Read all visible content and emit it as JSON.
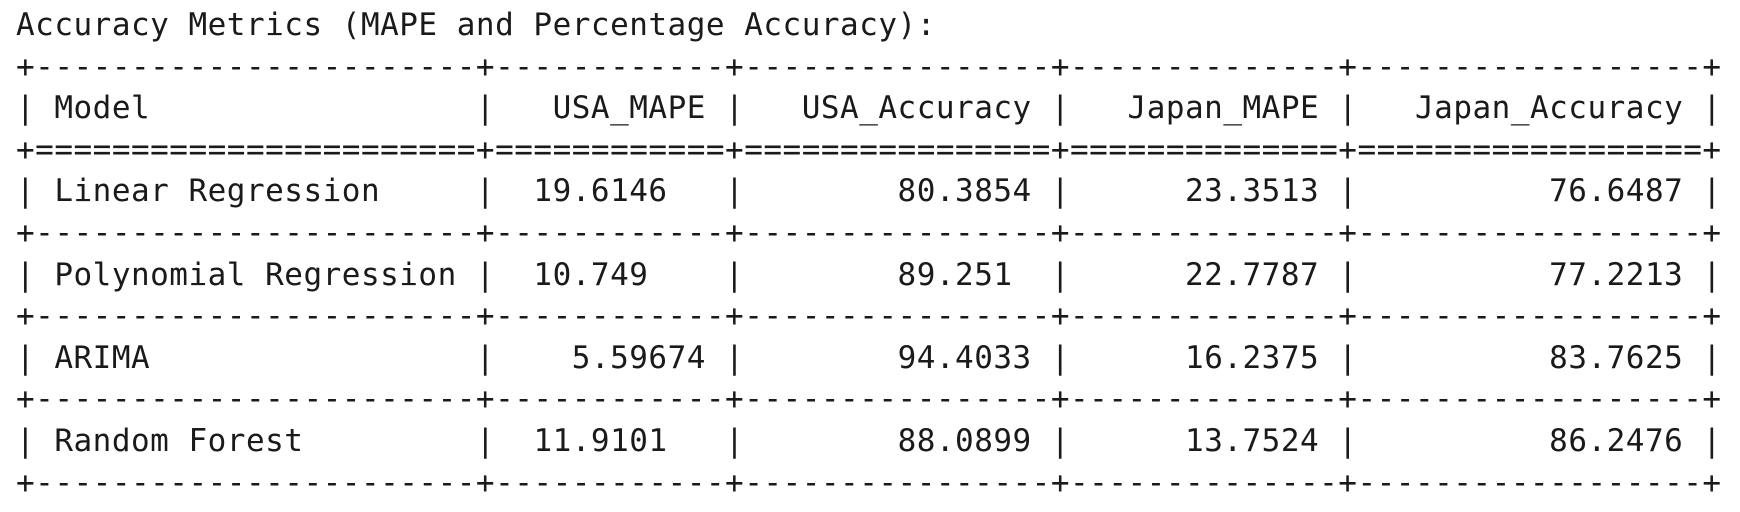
{
  "title": "Accuracy Metrics (MAPE and Percentage Accuracy):",
  "table": {
    "headers": [
      "Model",
      "USA_MAPE",
      "USA_Accuracy",
      "Japan_MAPE",
      "Japan_Accuracy"
    ],
    "rows": [
      [
        "Linear Regression",
        "19.6146",
        "80.3854",
        "23.3513",
        "76.6487"
      ],
      [
        "Polynomial Regression",
        "10.749",
        "89.251",
        "22.7787",
        "77.2213"
      ],
      [
        "ARIMA",
        "5.59674",
        "94.4033",
        "16.2375",
        "83.7625"
      ],
      [
        "Random Forest",
        "11.9101",
        "88.0899",
        "13.7524",
        "86.2476"
      ]
    ]
  }
}
